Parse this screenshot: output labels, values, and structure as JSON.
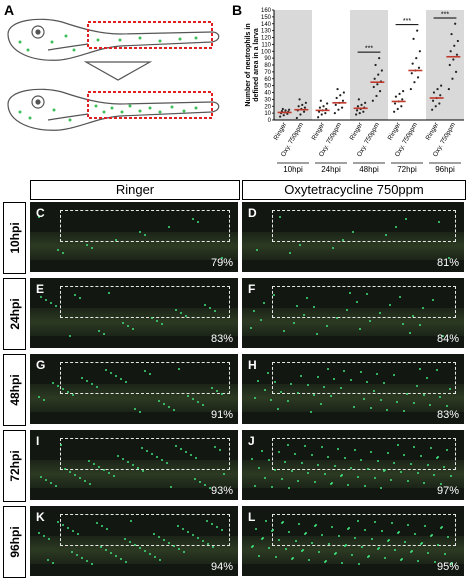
{
  "panel_a": {
    "letter": "A"
  },
  "panel_b": {
    "letter": "B",
    "chart_data": {
      "type": "scatter",
      "ylabel": "Number of neutrophils in defined area in a larva",
      "ylim": [
        0,
        160
      ],
      "yticks": [
        "0",
        "10",
        "20",
        "30",
        "40",
        "50",
        "60",
        "70",
        "80",
        "90",
        "100",
        "110",
        "120",
        "130",
        "140",
        "150",
        "160"
      ],
      "time_labels": [
        "10hpi",
        "24hpi",
        "48hpi",
        "72hpi",
        "96hpi"
      ],
      "group_labels": [
        "Ringer",
        "Oxy. 750ppm"
      ],
      "significance": "***",
      "significant_timepoints": [
        "48hpi",
        "72hpi",
        "96hpi"
      ],
      "mean_color": "#c0392b",
      "groups": [
        {
          "time": "10hpi",
          "treatment": "Ringer",
          "mean": 11,
          "values": [
            5,
            7,
            9,
            10,
            11,
            12,
            13,
            14,
            15,
            16
          ]
        },
        {
          "time": "10hpi",
          "treatment": "Oxy. 750ppm",
          "mean": 15,
          "values": [
            3,
            8,
            12,
            14,
            16,
            18,
            20,
            22,
            25,
            30
          ]
        },
        {
          "time": "24hpi",
          "treatment": "Ringer",
          "mean": 14,
          "values": [
            4,
            8,
            10,
            12,
            14,
            16,
            18,
            20,
            24,
            28
          ]
        },
        {
          "time": "24hpi",
          "treatment": "Oxy. 750ppm",
          "mean": 25,
          "values": [
            10,
            15,
            18,
            22,
            25,
            28,
            32,
            36,
            40,
            45
          ]
        },
        {
          "time": "48hpi",
          "treatment": "Ringer",
          "mean": 17,
          "values": [
            8,
            10,
            12,
            14,
            16,
            18,
            20,
            22,
            25,
            30
          ]
        },
        {
          "time": "48hpi",
          "treatment": "Oxy. 750ppm",
          "mean": 55,
          "values": [
            28,
            35,
            42,
            48,
            52,
            56,
            60,
            66,
            72,
            80,
            90
          ]
        },
        {
          "time": "72hpi",
          "treatment": "Ringer",
          "mean": 27,
          "values": [
            12,
            16,
            20,
            24,
            27,
            30,
            34,
            38,
            42
          ]
        },
        {
          "time": "72hpi",
          "treatment": "Oxy. 750ppm",
          "mean": 72,
          "values": [
            45,
            55,
            62,
            68,
            72,
            76,
            82,
            90,
            100,
            118,
            130
          ]
        },
        {
          "time": "96hpi",
          "treatment": "Ringer",
          "mean": 32,
          "values": [
            15,
            20,
            24,
            28,
            32,
            36,
            40,
            45,
            50
          ]
        },
        {
          "time": "96hpi",
          "treatment": "Oxy. 750ppm",
          "mean": 92,
          "values": [
            45,
            60,
            70,
            80,
            88,
            95,
            100,
            108,
            115,
            125,
            140
          ]
        }
      ]
    }
  },
  "columns": {
    "left": "Ringer",
    "right": "Oxytetracycline 750ppm"
  },
  "rows": [
    {
      "time": "10hpi",
      "left": {
        "letter": "C",
        "pct": "79%"
      },
      "right": {
        "letter": "D",
        "pct": "81%"
      }
    },
    {
      "time": "24hpi",
      "left": {
        "letter": "E",
        "pct": "83%"
      },
      "right": {
        "letter": "F",
        "pct": "84%"
      }
    },
    {
      "time": "48hpi",
      "left": {
        "letter": "G",
        "pct": "91%"
      },
      "right": {
        "letter": "H",
        "pct": "83%"
      }
    },
    {
      "time": "72hpi",
      "left": {
        "letter": "I",
        "pct": "93%"
      },
      "right": {
        "letter": "J",
        "pct": "97%"
      }
    },
    {
      "time": "96hpi",
      "left": {
        "letter": "K",
        "pct": "94%"
      },
      "right": {
        "letter": "L",
        "pct": "95%"
      }
    }
  ]
}
